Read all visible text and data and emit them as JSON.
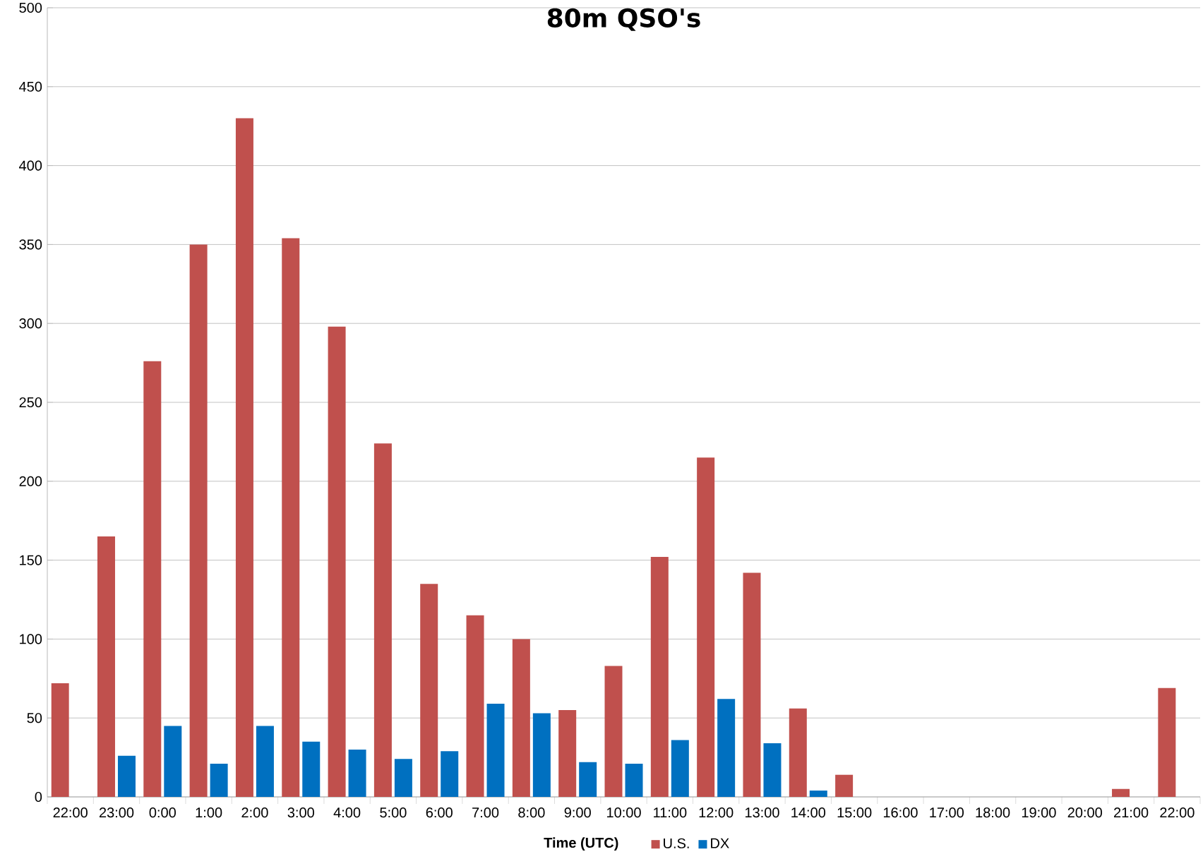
{
  "chart_data": {
    "type": "bar",
    "title": "80m QSO's",
    "xlabel": "Time (UTC)",
    "categories": [
      "22:00",
      "23:00",
      "0:00",
      "1:00",
      "2:00",
      "3:00",
      "4:00",
      "5:00",
      "6:00",
      "7:00",
      "8:00",
      "9:00",
      "10:00",
      "11:00",
      "12:00",
      "13:00",
      "14:00",
      "15:00",
      "16:00",
      "17:00",
      "18:00",
      "19:00",
      "20:00",
      "21:00",
      "22:00"
    ],
    "series": [
      {
        "name": "U.S.",
        "color": "#c0504d",
        "values": [
          72,
          165,
          276,
          350,
          430,
          354,
          298,
          224,
          135,
          115,
          100,
          55,
          83,
          152,
          215,
          142,
          56,
          14,
          0,
          0,
          0,
          0,
          0,
          5,
          69
        ]
      },
      {
        "name": "DX",
        "color": "#0070c0",
        "values": [
          0,
          26,
          45,
          21,
          45,
          35,
          30,
          24,
          29,
          59,
          53,
          22,
          21,
          36,
          62,
          34,
          4,
          0,
          0,
          0,
          0,
          0,
          0,
          0,
          0
        ]
      }
    ],
    "ylim": [
      0,
      500
    ],
    "yticks": [
      0,
      50,
      100,
      150,
      200,
      250,
      300,
      350,
      400,
      450,
      500
    ],
    "grid": "y",
    "legend": "bottom"
  }
}
